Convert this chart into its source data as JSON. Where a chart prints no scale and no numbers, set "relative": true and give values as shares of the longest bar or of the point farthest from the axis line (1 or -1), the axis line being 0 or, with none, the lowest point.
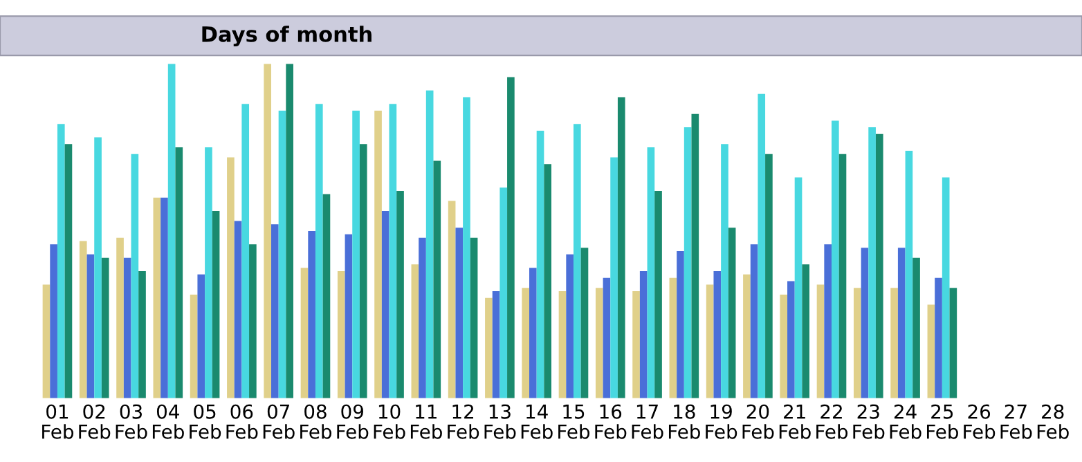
{
  "chart_data": {
    "type": "bar",
    "title": "Days of month",
    "relative": true,
    "categories": [
      "01\nFeb",
      "02\nFeb",
      "03\nFeb",
      "04\nFeb",
      "05\nFeb",
      "06\nFeb",
      "07\nFeb",
      "08\nFeb",
      "09\nFeb",
      "10\nFeb",
      "11\nFeb",
      "12\nFeb",
      "13\nFeb",
      "14\nFeb",
      "15\nFeb",
      "16\nFeb",
      "17\nFeb",
      "18\nFeb",
      "19\nFeb",
      "20\nFeb",
      "21\nFeb",
      "22\nFeb",
      "23\nFeb",
      "24\nFeb",
      "25\nFeb",
      "26\nFeb",
      "27\nFeb",
      "28\nFeb"
    ],
    "series": [
      {
        "color": "#e0d08a",
        "values": [
          0.34,
          0.47,
          0.48,
          0.6,
          0.31,
          0.72,
          1.0,
          0.39,
          0.38,
          0.86,
          0.4,
          0.59,
          0.3,
          0.33,
          0.32,
          0.33,
          0.32,
          0.36,
          0.34,
          0.37,
          0.31,
          0.34,
          0.33,
          0.33,
          0.28,
          null,
          null,
          null
        ]
      },
      {
        "color": "#4a6fd8",
        "values": [
          0.46,
          0.43,
          0.42,
          0.6,
          0.37,
          0.53,
          0.52,
          0.5,
          0.49,
          0.56,
          0.48,
          0.51,
          0.32,
          0.39,
          0.43,
          0.36,
          0.38,
          0.44,
          0.38,
          0.46,
          0.35,
          0.46,
          0.45,
          0.45,
          0.36,
          null,
          null,
          null
        ]
      },
      {
        "color": "#48d8e0",
        "values": [
          0.82,
          0.78,
          0.73,
          1.0,
          0.75,
          0.88,
          0.86,
          0.88,
          0.86,
          0.88,
          0.92,
          0.9,
          0.63,
          0.8,
          0.82,
          0.72,
          0.75,
          0.81,
          0.76,
          0.91,
          0.66,
          0.83,
          0.81,
          0.74,
          0.66,
          null,
          null,
          null
        ]
      },
      {
        "color": "#1a8a6e",
        "values": [
          0.76,
          0.42,
          0.38,
          0.75,
          0.56,
          0.46,
          1.0,
          0.61,
          0.76,
          0.62,
          0.71,
          0.48,
          0.96,
          0.7,
          0.45,
          0.9,
          0.62,
          0.85,
          0.51,
          0.73,
          0.4,
          0.73,
          0.79,
          0.42,
          0.33,
          null,
          null,
          null
        ]
      }
    ]
  }
}
